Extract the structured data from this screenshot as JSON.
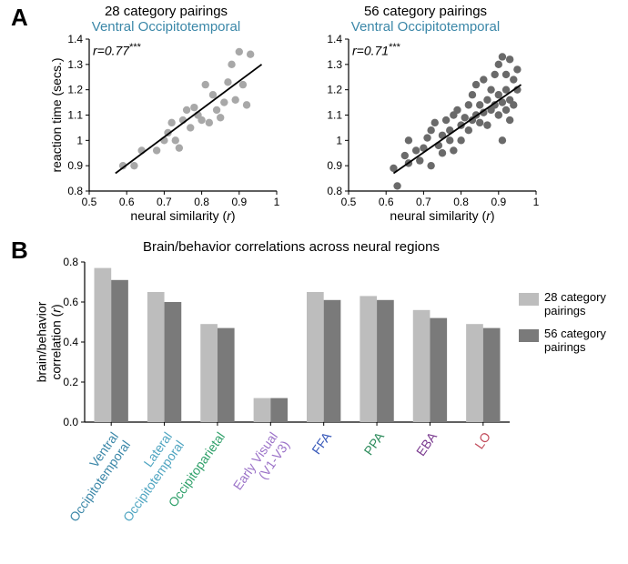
{
  "panelA": {
    "label": "A",
    "scatter_left": {
      "title_black": "28 category pairings",
      "title_blue": "Ventral Occipitotemporal",
      "title_blue_color": "#3b87a8",
      "r_text": "r=0.77",
      "stars": "***",
      "xlabel": "neural similarity (r)",
      "ylabel": "reaction time (secs.)",
      "xlim": [
        0.5,
        1.0
      ],
      "ylim": [
        0.8,
        1.4
      ],
      "xticks": [
        0.5,
        0.6,
        0.7,
        0.8,
        0.9,
        1
      ],
      "yticks": [
        0.8,
        0.9,
        1,
        1.1,
        1.2,
        1.3,
        1.4
      ],
      "point_color": "#a8a8a8",
      "line_color": "#000000",
      "fit_line": {
        "x1": 0.57,
        "y1": 0.87,
        "x2": 0.96,
        "y2": 1.3
      },
      "points": [
        [
          0.59,
          0.9
        ],
        [
          0.62,
          0.9
        ],
        [
          0.64,
          0.96
        ],
        [
          0.68,
          0.96
        ],
        [
          0.7,
          1.0
        ],
        [
          0.71,
          1.03
        ],
        [
          0.72,
          1.07
        ],
        [
          0.73,
          1.0
        ],
        [
          0.74,
          0.97
        ],
        [
          0.75,
          1.08
        ],
        [
          0.76,
          1.12
        ],
        [
          0.77,
          1.05
        ],
        [
          0.78,
          1.13
        ],
        [
          0.79,
          1.1
        ],
        [
          0.8,
          1.08
        ],
        [
          0.81,
          1.22
        ],
        [
          0.82,
          1.07
        ],
        [
          0.83,
          1.18
        ],
        [
          0.84,
          1.12
        ],
        [
          0.85,
          1.09
        ],
        [
          0.86,
          1.15
        ],
        [
          0.87,
          1.23
        ],
        [
          0.88,
          1.3
        ],
        [
          0.89,
          1.16
        ],
        [
          0.9,
          1.35
        ],
        [
          0.91,
          1.22
        ],
        [
          0.92,
          1.14
        ],
        [
          0.93,
          1.34
        ]
      ]
    },
    "scatter_right": {
      "title_black": "56 category pairings",
      "title_blue": "Ventral Occipitotemporal",
      "title_blue_color": "#3b87a8",
      "r_text": "r=0.71",
      "stars": "***",
      "xlabel": "neural similarity (r)",
      "xlim": [
        0.5,
        1.0
      ],
      "ylim": [
        0.8,
        1.4
      ],
      "xticks": [
        0.5,
        0.6,
        0.7,
        0.8,
        0.9,
        1
      ],
      "yticks": [
        0.8,
        0.9,
        1,
        1.1,
        1.2,
        1.3,
        1.4
      ],
      "point_color": "#6a6a6a",
      "line_color": "#000000",
      "fit_line": {
        "x1": 0.62,
        "y1": 0.87,
        "x2": 0.96,
        "y2": 1.22
      },
      "points": [
        [
          0.62,
          0.89
        ],
        [
          0.63,
          0.82
        ],
        [
          0.65,
          0.94
        ],
        [
          0.66,
          0.91
        ],
        [
          0.66,
          1.0
        ],
        [
          0.68,
          0.96
        ],
        [
          0.69,
          0.92
        ],
        [
          0.7,
          0.97
        ],
        [
          0.71,
          1.01
        ],
        [
          0.72,
          0.9
        ],
        [
          0.72,
          1.04
        ],
        [
          0.73,
          1.07
        ],
        [
          0.74,
          0.98
        ],
        [
          0.75,
          1.02
        ],
        [
          0.75,
          0.95
        ],
        [
          0.76,
          1.08
        ],
        [
          0.77,
          1.04
        ],
        [
          0.77,
          1.0
        ],
        [
          0.78,
          1.1
        ],
        [
          0.78,
          0.96
        ],
        [
          0.79,
          1.12
        ],
        [
          0.8,
          1.06
        ],
        [
          0.8,
          1.0
        ],
        [
          0.81,
          1.09
        ],
        [
          0.82,
          1.14
        ],
        [
          0.82,
          1.04
        ],
        [
          0.83,
          1.18
        ],
        [
          0.83,
          1.08
        ],
        [
          0.84,
          1.22
        ],
        [
          0.84,
          1.1
        ],
        [
          0.85,
          1.07
        ],
        [
          0.85,
          1.14
        ],
        [
          0.86,
          1.11
        ],
        [
          0.86,
          1.24
        ],
        [
          0.87,
          1.16
        ],
        [
          0.87,
          1.06
        ],
        [
          0.88,
          1.2
        ],
        [
          0.88,
          1.12
        ],
        [
          0.89,
          1.26
        ],
        [
          0.89,
          1.14
        ],
        [
          0.9,
          1.3
        ],
        [
          0.9,
          1.1
        ],
        [
          0.9,
          1.18
        ],
        [
          0.91,
          1.33
        ],
        [
          0.91,
          1.15
        ],
        [
          0.91,
          1.0
        ],
        [
          0.92,
          1.2
        ],
        [
          0.92,
          1.12
        ],
        [
          0.92,
          1.26
        ],
        [
          0.93,
          1.32
        ],
        [
          0.93,
          1.16
        ],
        [
          0.93,
          1.08
        ],
        [
          0.94,
          1.24
        ],
        [
          0.94,
          1.14
        ],
        [
          0.95,
          1.2
        ],
        [
          0.95,
          1.28
        ]
      ]
    }
  },
  "panelB": {
    "label": "B",
    "title": "Brain/behavior correlations across neural regions",
    "ylabel": "brain/behavior\ncorrelation (r)",
    "ylim": [
      0.0,
      0.8
    ],
    "yticks": [
      0.0,
      0.2,
      0.4,
      0.6,
      0.8
    ],
    "legend": {
      "items": [
        {
          "label": "28 category\npairings",
          "color": "#bdbdbd"
        },
        {
          "label": "56 category\npairings",
          "color": "#7a7a7a"
        }
      ]
    },
    "bar_colors_28": "#bdbdbd",
    "bar_colors_56": "#7a7a7a",
    "regions": [
      {
        "name": "Ventral\nOccipitotemporal",
        "color": "#3b87a8",
        "v28": 0.77,
        "v56": 0.71
      },
      {
        "name": "Lateral\nOccipitotemporal",
        "color": "#4fa5c1",
        "v28": 0.65,
        "v56": 0.6
      },
      {
        "name": "Occipitoparietal",
        "color": "#2fa06a",
        "v28": 0.49,
        "v56": 0.47
      },
      {
        "name": "Early Visual\n(V1-V3)",
        "color": "#9b72c8",
        "v28": 0.12,
        "v56": 0.12
      },
      {
        "name": "FFA",
        "color": "#3456b8",
        "v28": 0.65,
        "v56": 0.61
      },
      {
        "name": "PPA",
        "color": "#2a8a5a",
        "v28": 0.63,
        "v56": 0.61
      },
      {
        "name": "EBA",
        "color": "#7a3a8f",
        "v28": 0.56,
        "v56": 0.52
      },
      {
        "name": "LO",
        "color": "#c14a5a",
        "v28": 0.49,
        "v56": 0.47
      }
    ]
  }
}
